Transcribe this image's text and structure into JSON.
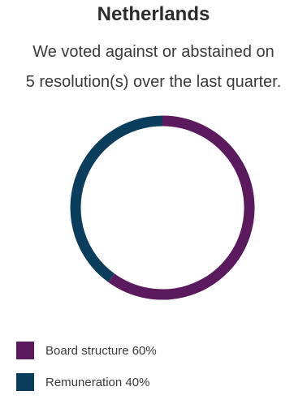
{
  "chart_data": {
    "type": "pie",
    "title": "Netherlands",
    "subtitle_lines": [
      "We voted against or abstained on",
      "5 resolution(s) over the last quarter."
    ],
    "slices": [
      {
        "name": "Board structure",
        "value": 60,
        "label": "Board structure 60%",
        "color": "#5b1a5e"
      },
      {
        "name": "Remuneration",
        "value": 40,
        "label": "Remuneration 40%",
        "color": "#0b3d5c"
      }
    ],
    "legend_position": "bottom-left"
  }
}
